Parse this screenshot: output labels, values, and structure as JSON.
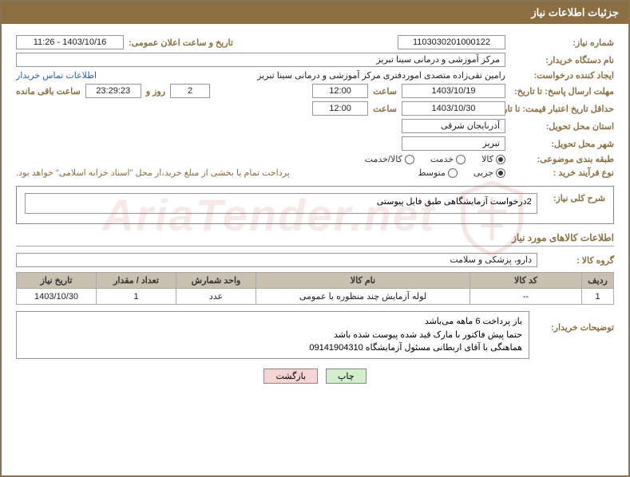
{
  "header": {
    "title": "جزئیات اطلاعات نیاز"
  },
  "fields": {
    "need_number_label": "شماره نیاز:",
    "need_number": "1103030201000122",
    "announce_date_label": "تاریخ و ساعت اعلان عمومی:",
    "announce_date": "1403/10/16 - 11:26",
    "buyer_org_label": "نام دستگاه خریدار:",
    "buyer_org": "مرکز آموزشی و درمانی سینا تبریز",
    "creator_label": "ایجاد کننده درخواست:",
    "creator": "رامین تقی‌زاده متصدی اموردفتری مرکز آموزشی و درمانی سینا تبریز",
    "contact_link": "اطلاعات تماس خریدار",
    "deadline_label": "مهلت ارسال پاسخ: تا تاریخ:",
    "deadline_date": "1403/10/19",
    "time_label": "ساعت",
    "deadline_time": "12:00",
    "days_left": "2",
    "days_word": "روز و",
    "hours_left": "23:29:23",
    "remain_label": "ساعت باقی مانده",
    "validity_label": "حداقل تاریخ اعتبار قیمت: تا تاریخ:",
    "validity_date": "1403/10/30",
    "validity_time": "12:00",
    "province_label": "استان محل تحویل:",
    "province": "آذربایجان شرقی",
    "city_label": "شهر محل تحویل:",
    "city": "تبریز",
    "category_label": "طبقه بندی موضوعی:",
    "process_label": "نوع فرآیند خرید :",
    "process_note": "پرداخت تمام یا بخشی از مبلغ خرید،از محل \"اسناد خزانه اسلامی\" خواهد بود."
  },
  "radios": {
    "category": [
      {
        "label": "کالا",
        "checked": true
      },
      {
        "label": "خدمت",
        "checked": false
      },
      {
        "label": "کالا/خدمت",
        "checked": false
      }
    ],
    "process": [
      {
        "label": "جزیی",
        "checked": true
      },
      {
        "label": "متوسط",
        "checked": false
      }
    ]
  },
  "summary": {
    "label": "شرح کلی نیاز:",
    "text": "2درخواست آزمایشگاهی طبق فایل پیوستی"
  },
  "items_section": {
    "title": "اطلاعات کالاهای مورد نیاز",
    "group_label": "گروه کالا :",
    "group_value": "دارو، پزشکی و سلامت"
  },
  "table": {
    "columns": [
      "ردیف",
      "کد کالا",
      "نام کالا",
      "واحد شمارش",
      "تعداد / مقدار",
      "تاریخ نیاز"
    ],
    "col_widths": [
      "40px",
      "140px",
      "auto",
      "100px",
      "100px",
      "100px"
    ],
    "rows": [
      [
        "1",
        "--",
        "لوله آزمایش چند منظوره یا عمومی",
        "عدد",
        "1",
        "1403/10/30"
      ]
    ]
  },
  "buyer_desc": {
    "label": "توضیحات خریدار:",
    "lines": [
      "باز پرداخت 6 ماهه می‌باشد",
      "حتما پیش فاکتور با مارک قید شده پیوست شده باشد",
      "هماهنگی با آقای اربطانی مسئول آزمایشگاه 09141904310"
    ]
  },
  "buttons": {
    "print": "چاپ",
    "back": "بازگشت"
  },
  "watermark": "AriaTender.net",
  "colors": {
    "brand": "#8b6f42",
    "frame": "#8b7355",
    "th_bg": "#c8c0b0"
  }
}
